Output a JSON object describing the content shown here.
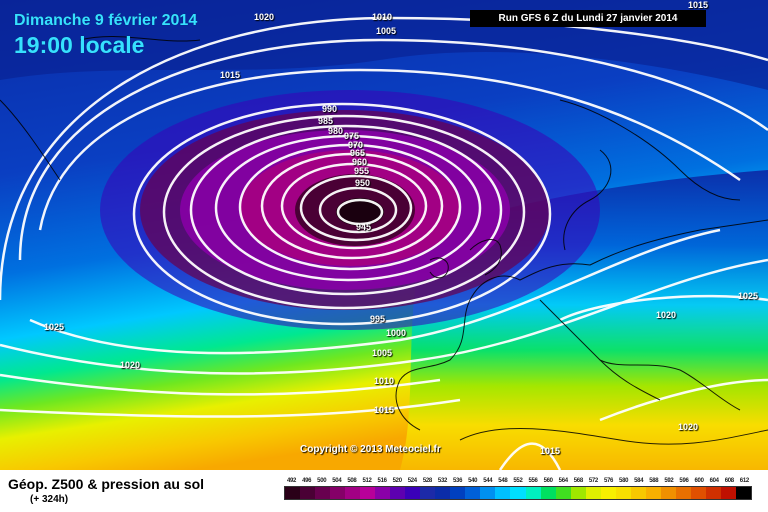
{
  "header": {
    "date": "Dimanche 9 février 2014",
    "time": "19:00 locale",
    "run": "Run GFS 6 Z du Lundi 27 janvier 2014"
  },
  "copyright": "Copyright © 2013 Meteociel.fr",
  "isobars": [
    "1020",
    "1015",
    "1010",
    "1005",
    "1015",
    "990",
    "985",
    "980",
    "975",
    "970",
    "965",
    "960",
    "955",
    "950",
    "945",
    "995",
    "1000",
    "1005",
    "1010",
    "1015",
    "1025",
    "1020",
    "1020",
    "1025",
    "1020",
    "1015"
  ],
  "legend": {
    "title": "Géop. Z500 & pression au sol",
    "subtitle": "(+ 324h)",
    "ticks": [
      "492",
      "496",
      "500",
      "504",
      "508",
      "512",
      "516",
      "520",
      "524",
      "528",
      "532",
      "536",
      "540",
      "544",
      "548",
      "552",
      "556",
      "560",
      "564",
      "568",
      "572",
      "576",
      "580",
      "584",
      "588",
      "592",
      "596",
      "600",
      "604",
      "608",
      "612"
    ],
    "colors": [
      "#2a0018",
      "#4a0035",
      "#68004f",
      "#850068",
      "#a20084",
      "#b8009a",
      "#8a00a8",
      "#5d00b0",
      "#3a00b8",
      "#1c2aa8",
      "#0b2ca8",
      "#0040c0",
      "#0060d8",
      "#0090f0",
      "#00c0ff",
      "#00e0ff",
      "#00f0c0",
      "#00e060",
      "#40e020",
      "#a0e800",
      "#e0f000",
      "#f8f000",
      "#f8e000",
      "#f8c800",
      "#f8b000",
      "#f09000",
      "#e87000",
      "#e05000",
      "#d03000",
      "#c01000",
      "#000000"
    ]
  }
}
